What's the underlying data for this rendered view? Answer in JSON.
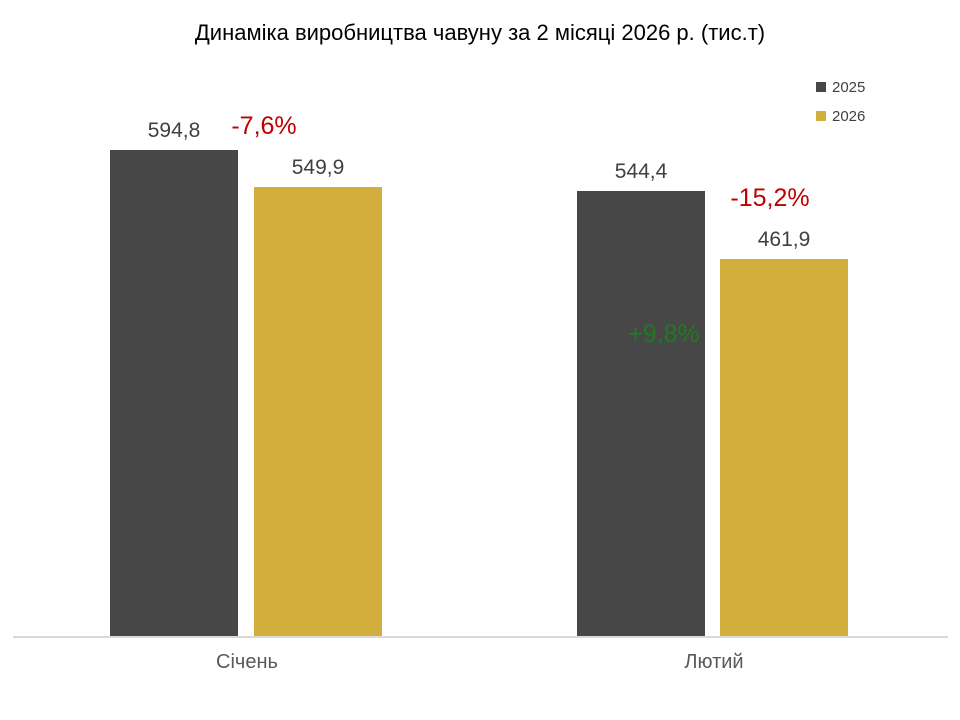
{
  "title": "Динаміка виробництва чавуну за 2 місяці 2026 р. (тис.т)",
  "colors": {
    "series_2025": "#474747",
    "series_2026": "#D2AE3C",
    "decrease": "#C00000",
    "increase": "#1E7B1E",
    "value_label": "#404040",
    "category_label": "#595959",
    "axis_line": "#D9D9D9",
    "background": "#FFFFFF"
  },
  "legend": {
    "position": "top-right",
    "items": [
      {
        "label": "2025",
        "color": "#474747"
      },
      {
        "label": "2026",
        "color": "#D2AE3C"
      }
    ]
  },
  "chart_data": {
    "type": "bar",
    "title": "Динаміка виробництва чавуну за 2 місяці 2026 р. (тис.т)",
    "categories": [
      "Січень",
      "Лютий"
    ],
    "series": [
      {
        "name": "2025",
        "color": "#474747",
        "values": [
          594.8,
          544.4
        ],
        "value_labels": [
          "594,8",
          "544,4"
        ]
      },
      {
        "name": "2026",
        "color": "#D2AE3C",
        "values": [
          549.9,
          461.9
        ],
        "value_labels": [
          "549,9",
          "461,9"
        ]
      }
    ],
    "annotations": [
      {
        "text": "-7,6%",
        "color": "#C00000"
      },
      {
        "text": "-15,2%",
        "color": "#C00000"
      },
      {
        "text": "+9,8%",
        "color": "#1E7B1E"
      }
    ],
    "ylim": [
      0,
      650
    ],
    "grid": false,
    "legend_position": "top-right",
    "xlabel": "",
    "ylabel": ""
  }
}
